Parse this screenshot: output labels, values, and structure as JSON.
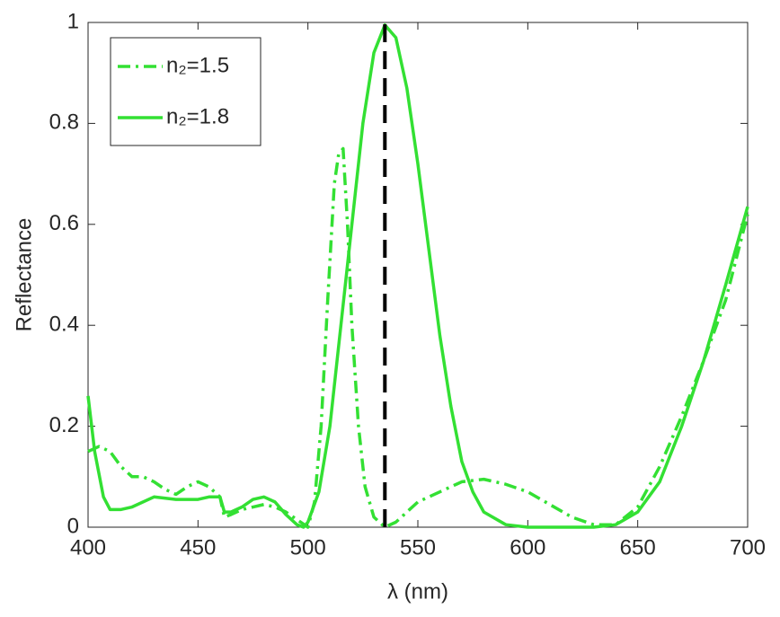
{
  "chart_data": {
    "type": "line",
    "x_label": "λ (nm)",
    "y_label": "Reflectance",
    "xlim": [
      400,
      700
    ],
    "xticks": [
      400,
      450,
      500,
      550,
      600,
      650,
      700
    ],
    "ylim": [
      0,
      1
    ],
    "yticks": [
      0,
      0.2,
      0.4,
      0.6,
      0.8,
      1
    ],
    "legend": "upper-left",
    "vline_x": 535,
    "vline_color": "#000000",
    "series": [
      {
        "name": "n₂=1.5",
        "color": "#33e033",
        "dash": "dashdot",
        "x": [
          400,
          405,
          410,
          415,
          420,
          425,
          430,
          435,
          440,
          445,
          450,
          455,
          460,
          462,
          465,
          470,
          475,
          480,
          485,
          490,
          495,
          500,
          503,
          506,
          509,
          512,
          514,
          516,
          518,
          520,
          523,
          526,
          530,
          535,
          540,
          545,
          550,
          560,
          570,
          580,
          590,
          600,
          610,
          620,
          630,
          640,
          650,
          660,
          670,
          680,
          690,
          700
        ],
        "values": [
          0.15,
          0.16,
          0.15,
          0.12,
          0.1,
          0.1,
          0.09,
          0.075,
          0.065,
          0.08,
          0.09,
          0.08,
          0.06,
          0.02,
          0.025,
          0.035,
          0.04,
          0.045,
          0.04,
          0.03,
          0.015,
          0.0,
          0.05,
          0.2,
          0.45,
          0.68,
          0.74,
          0.75,
          0.6,
          0.4,
          0.2,
          0.08,
          0.02,
          0.0,
          0.01,
          0.03,
          0.05,
          0.07,
          0.09,
          0.095,
          0.085,
          0.07,
          0.045,
          0.02,
          0.005,
          0.005,
          0.04,
          0.12,
          0.22,
          0.33,
          0.45,
          0.62
        ]
      },
      {
        "name": "n₂=1.8",
        "color": "#33e033",
        "dash": "solid",
        "x": [
          400,
          403,
          407,
          410,
          415,
          420,
          430,
          440,
          450,
          455,
          460,
          462,
          465,
          470,
          475,
          480,
          485,
          490,
          495,
          498,
          500,
          505,
          510,
          515,
          520,
          525,
          530,
          535,
          540,
          545,
          550,
          555,
          560,
          565,
          570,
          575,
          580,
          590,
          600,
          620,
          630,
          640,
          650,
          660,
          670,
          680,
          690,
          700
        ],
        "values": [
          0.26,
          0.15,
          0.06,
          0.035,
          0.035,
          0.04,
          0.06,
          0.055,
          0.055,
          0.06,
          0.06,
          0.03,
          0.03,
          0.04,
          0.055,
          0.06,
          0.05,
          0.025,
          0.005,
          0.0,
          0.01,
          0.07,
          0.2,
          0.4,
          0.6,
          0.8,
          0.94,
          0.995,
          0.97,
          0.87,
          0.72,
          0.55,
          0.38,
          0.24,
          0.13,
          0.07,
          0.03,
          0.005,
          0.0,
          0.0,
          0.0,
          0.005,
          0.03,
          0.09,
          0.2,
          0.33,
          0.48,
          0.635
        ]
      }
    ]
  }
}
